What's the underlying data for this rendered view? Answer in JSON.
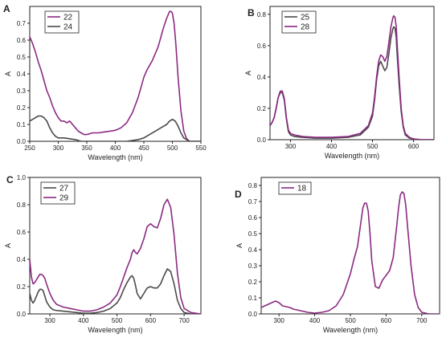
{
  "colors": {
    "purple": "#8b2a82",
    "dark": "#4a4a4a"
  },
  "chart_data": [
    {
      "panel": "A",
      "type": "line",
      "xlabel": "Wavelength (nm)",
      "ylabel": "A",
      "xlim": [
        250,
        550
      ],
      "ylim": [
        0,
        0.8
      ],
      "xticks": [
        250,
        300,
        350,
        400,
        450,
        500,
        550
      ],
      "yticks": [
        0.0,
        0.1,
        0.2,
        0.3,
        0.4,
        0.5,
        0.6,
        0.7
      ],
      "legend_position": "top-left",
      "series": [
        {
          "name": "22",
          "color": "#8b2a82",
          "x": [
            250,
            255,
            260,
            265,
            270,
            275,
            280,
            285,
            290,
            295,
            300,
            305,
            310,
            315,
            320,
            325,
            330,
            335,
            340,
            345,
            350,
            360,
            370,
            380,
            390,
            400,
            410,
            420,
            430,
            440,
            445,
            450,
            455,
            460,
            465,
            470,
            475,
            480,
            485,
            490,
            495,
            498,
            500,
            503,
            506,
            510,
            515,
            520,
            525,
            530,
            535,
            540,
            545,
            550
          ],
          "y": [
            0.62,
            0.58,
            0.53,
            0.47,
            0.42,
            0.36,
            0.3,
            0.26,
            0.21,
            0.17,
            0.14,
            0.12,
            0.12,
            0.11,
            0.12,
            0.1,
            0.08,
            0.06,
            0.05,
            0.04,
            0.04,
            0.05,
            0.05,
            0.055,
            0.06,
            0.065,
            0.08,
            0.11,
            0.17,
            0.26,
            0.32,
            0.38,
            0.42,
            0.45,
            0.48,
            0.52,
            0.56,
            0.62,
            0.68,
            0.73,
            0.77,
            0.77,
            0.76,
            0.7,
            0.58,
            0.38,
            0.18,
            0.06,
            0.015,
            0.0,
            0.0,
            0.0,
            0.0,
            0.0
          ]
        },
        {
          "name": "24",
          "color": "#4a4a4a",
          "x": [
            250,
            255,
            260,
            265,
            270,
            275,
            280,
            285,
            290,
            295,
            300,
            310,
            320,
            330,
            340,
            350,
            360,
            380,
            400,
            420,
            440,
            450,
            460,
            470,
            480,
            490,
            495,
            500,
            505,
            510,
            515,
            520,
            530,
            540,
            550
          ],
          "y": [
            0.12,
            0.13,
            0.14,
            0.15,
            0.15,
            0.14,
            0.12,
            0.08,
            0.05,
            0.03,
            0.02,
            0.02,
            0.015,
            0.01,
            0.0,
            0.0,
            0.0,
            0.0,
            0.0,
            0.0,
            0.01,
            0.02,
            0.04,
            0.06,
            0.08,
            0.1,
            0.12,
            0.13,
            0.12,
            0.09,
            0.05,
            0.02,
            0.0,
            0.0,
            0.0
          ]
        }
      ]
    },
    {
      "panel": "B",
      "type": "line",
      "xlabel": "Wavelength (nm)",
      "ylabel": "A",
      "xlim": [
        250,
        650
      ],
      "ylim": [
        0,
        0.85
      ],
      "xticks": [
        300,
        400,
        500,
        600
      ],
      "yticks": [
        0.0,
        0.2,
        0.4,
        0.6,
        0.8
      ],
      "legend_position": "top-left",
      "series": [
        {
          "name": "25",
          "color": "#4a4a4a",
          "x": [
            250,
            255,
            260,
            265,
            270,
            275,
            280,
            285,
            290,
            295,
            300,
            310,
            330,
            360,
            400,
            440,
            470,
            490,
            500,
            505,
            510,
            515,
            520,
            525,
            530,
            535,
            540,
            545,
            550,
            552,
            555,
            558,
            560,
            565,
            570,
            575,
            580,
            590,
            600,
            620,
            650
          ],
          "y": [
            0.09,
            0.11,
            0.14,
            0.2,
            0.27,
            0.3,
            0.3,
            0.25,
            0.13,
            0.05,
            0.03,
            0.02,
            0.015,
            0.01,
            0.01,
            0.015,
            0.03,
            0.08,
            0.15,
            0.25,
            0.38,
            0.47,
            0.5,
            0.47,
            0.44,
            0.46,
            0.55,
            0.65,
            0.71,
            0.72,
            0.71,
            0.65,
            0.55,
            0.35,
            0.18,
            0.08,
            0.03,
            0.01,
            0.005,
            0.0,
            0.0
          ]
        },
        {
          "name": "28",
          "color": "#8b2a82",
          "x": [
            250,
            255,
            260,
            265,
            270,
            275,
            280,
            285,
            290,
            295,
            300,
            310,
            330,
            360,
            400,
            440,
            470,
            490,
            500,
            505,
            510,
            515,
            520,
            525,
            530,
            535,
            540,
            545,
            550,
            552,
            555,
            558,
            560,
            565,
            570,
            575,
            580,
            590,
            600,
            620,
            650
          ],
          "y": [
            0.09,
            0.11,
            0.14,
            0.2,
            0.27,
            0.31,
            0.31,
            0.26,
            0.14,
            0.06,
            0.04,
            0.03,
            0.02,
            0.015,
            0.015,
            0.02,
            0.04,
            0.09,
            0.17,
            0.27,
            0.4,
            0.5,
            0.54,
            0.53,
            0.5,
            0.53,
            0.62,
            0.72,
            0.78,
            0.79,
            0.78,
            0.72,
            0.62,
            0.4,
            0.2,
            0.09,
            0.04,
            0.015,
            0.005,
            0.0,
            0.0
          ]
        }
      ]
    },
    {
      "panel": "C",
      "type": "line",
      "xlabel": "Wavelength (nm)",
      "ylabel": "A",
      "xlim": [
        240,
        750
      ],
      "ylim": [
        0,
        1.0
      ],
      "xticks": [
        300,
        400,
        500,
        600,
        700
      ],
      "yticks": [
        0.0,
        0.2,
        0.4,
        0.6,
        0.8,
        1.0
      ],
      "legend_position": "top-left",
      "series": [
        {
          "name": "27",
          "color": "#4a4a4a",
          "x": [
            240,
            245,
            250,
            255,
            260,
            265,
            270,
            275,
            280,
            285,
            290,
            300,
            310,
            320,
            340,
            360,
            380,
            400,
            420,
            440,
            460,
            480,
            500,
            510,
            520,
            530,
            540,
            545,
            550,
            555,
            560,
            570,
            580,
            590,
            600,
            610,
            620,
            630,
            640,
            650,
            660,
            670,
            680,
            690,
            700,
            720,
            750
          ],
          "y": [
            0.15,
            0.1,
            0.08,
            0.1,
            0.13,
            0.16,
            0.18,
            0.18,
            0.17,
            0.13,
            0.09,
            0.05,
            0.03,
            0.025,
            0.02,
            0.015,
            0.01,
            0.005,
            0.005,
            0.01,
            0.02,
            0.04,
            0.08,
            0.12,
            0.18,
            0.23,
            0.27,
            0.28,
            0.26,
            0.21,
            0.15,
            0.11,
            0.15,
            0.19,
            0.2,
            0.19,
            0.19,
            0.22,
            0.28,
            0.33,
            0.31,
            0.22,
            0.1,
            0.04,
            0.01,
            0.0,
            0.0
          ]
        },
        {
          "name": "29",
          "color": "#8b2a82",
          "x": [
            240,
            245,
            250,
            255,
            260,
            265,
            270,
            275,
            280,
            285,
            290,
            300,
            310,
            320,
            340,
            360,
            380,
            400,
            420,
            440,
            460,
            480,
            500,
            510,
            520,
            530,
            540,
            545,
            550,
            555,
            560,
            570,
            580,
            590,
            600,
            610,
            620,
            630,
            640,
            650,
            660,
            670,
            680,
            690,
            700,
            720,
            750
          ],
          "y": [
            0.4,
            0.27,
            0.22,
            0.23,
            0.25,
            0.27,
            0.29,
            0.29,
            0.28,
            0.26,
            0.22,
            0.15,
            0.1,
            0.07,
            0.05,
            0.04,
            0.03,
            0.02,
            0.02,
            0.03,
            0.05,
            0.08,
            0.14,
            0.2,
            0.27,
            0.34,
            0.4,
            0.45,
            0.47,
            0.45,
            0.44,
            0.48,
            0.55,
            0.64,
            0.66,
            0.64,
            0.63,
            0.7,
            0.8,
            0.84,
            0.78,
            0.58,
            0.3,
            0.12,
            0.04,
            0.01,
            0.0
          ]
        }
      ]
    },
    {
      "panel": "D",
      "type": "line",
      "xlabel": "Wavelength (nm)",
      "ylabel": "A",
      "xlim": [
        250,
        750
      ],
      "ylim": [
        0,
        0.85
      ],
      "xticks": [
        300,
        400,
        500,
        600,
        700
      ],
      "yticks": [
        0.0,
        0.1,
        0.2,
        0.3,
        0.4,
        0.5,
        0.6,
        0.7,
        0.8
      ],
      "legend_position": "top-left",
      "series": [
        {
          "name": "18",
          "color": "#8b2a82",
          "x": [
            250,
            260,
            270,
            280,
            290,
            300,
            310,
            320,
            330,
            340,
            360,
            380,
            400,
            420,
            440,
            460,
            480,
            500,
            510,
            520,
            530,
            535,
            540,
            545,
            550,
            555,
            560,
            570,
            580,
            590,
            600,
            610,
            620,
            630,
            635,
            640,
            645,
            650,
            655,
            660,
            670,
            680,
            690,
            700,
            720,
            750
          ],
          "y": [
            0.04,
            0.05,
            0.06,
            0.07,
            0.08,
            0.07,
            0.05,
            0.045,
            0.04,
            0.03,
            0.02,
            0.01,
            0.005,
            0.01,
            0.02,
            0.05,
            0.12,
            0.25,
            0.34,
            0.42,
            0.58,
            0.66,
            0.69,
            0.69,
            0.64,
            0.5,
            0.33,
            0.17,
            0.16,
            0.21,
            0.24,
            0.27,
            0.35,
            0.55,
            0.66,
            0.74,
            0.76,
            0.75,
            0.68,
            0.55,
            0.3,
            0.12,
            0.04,
            0.01,
            0.0,
            0.0
          ]
        }
      ]
    }
  ]
}
